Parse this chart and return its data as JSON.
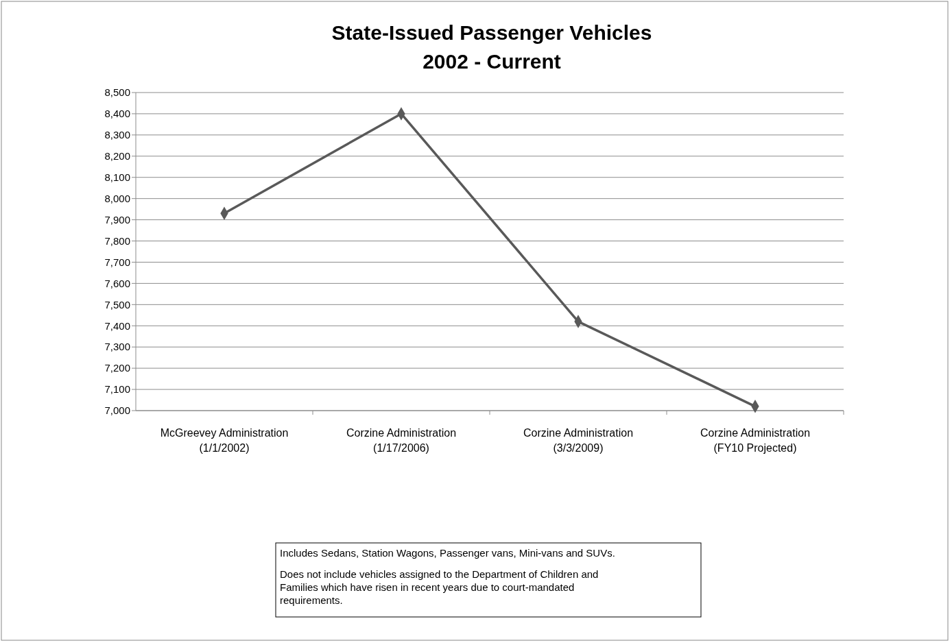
{
  "chart_data": {
    "type": "line",
    "title": "State-Issued Passenger Vehicles\n2002 - Current",
    "categories": [
      "McGreevey Administration\n(1/1/2002)",
      "Corzine Administration\n(1/17/2006)",
      "Corzine Administration\n(3/3/2009)",
      "Corzine Administration\n(FY10 Projected)"
    ],
    "series": [
      {
        "color": "#595959",
        "values": [
          7930,
          8400,
          7420,
          7020
        ]
      }
    ],
    "ylim": [
      7000,
      8500
    ],
    "yticks": [
      {
        "value": 7000,
        "label": "7,000"
      },
      {
        "value": 7100,
        "label": "7,100"
      },
      {
        "value": 7200,
        "label": "7,200"
      },
      {
        "value": 7300,
        "label": "7,300"
      },
      {
        "value": 7400,
        "label": "7,400"
      },
      {
        "value": 7500,
        "label": "7,500"
      },
      {
        "value": 7600,
        "label": "7,600"
      },
      {
        "value": 7700,
        "label": "7,700"
      },
      {
        "value": 7800,
        "label": "7,800"
      },
      {
        "value": 7900,
        "label": "7,900"
      },
      {
        "value": 8000,
        "label": "8,000"
      },
      {
        "value": 8100,
        "label": "8,100"
      },
      {
        "value": 8200,
        "label": "8,200"
      },
      {
        "value": 8300,
        "label": "8,300"
      },
      {
        "value": 8400,
        "label": "8,400"
      },
      {
        "value": 8500,
        "label": "8,500"
      }
    ],
    "grid": "y",
    "marker": "diamond",
    "line_style": "solid",
    "annotations": [
      "Includes Sedans, Station Wagons, Passenger vans, Mini-vans and SUVs.",
      "Does not include vehicles assigned to the Department of Children and Families which have risen in recent years due to court-mandated requirements."
    ]
  }
}
